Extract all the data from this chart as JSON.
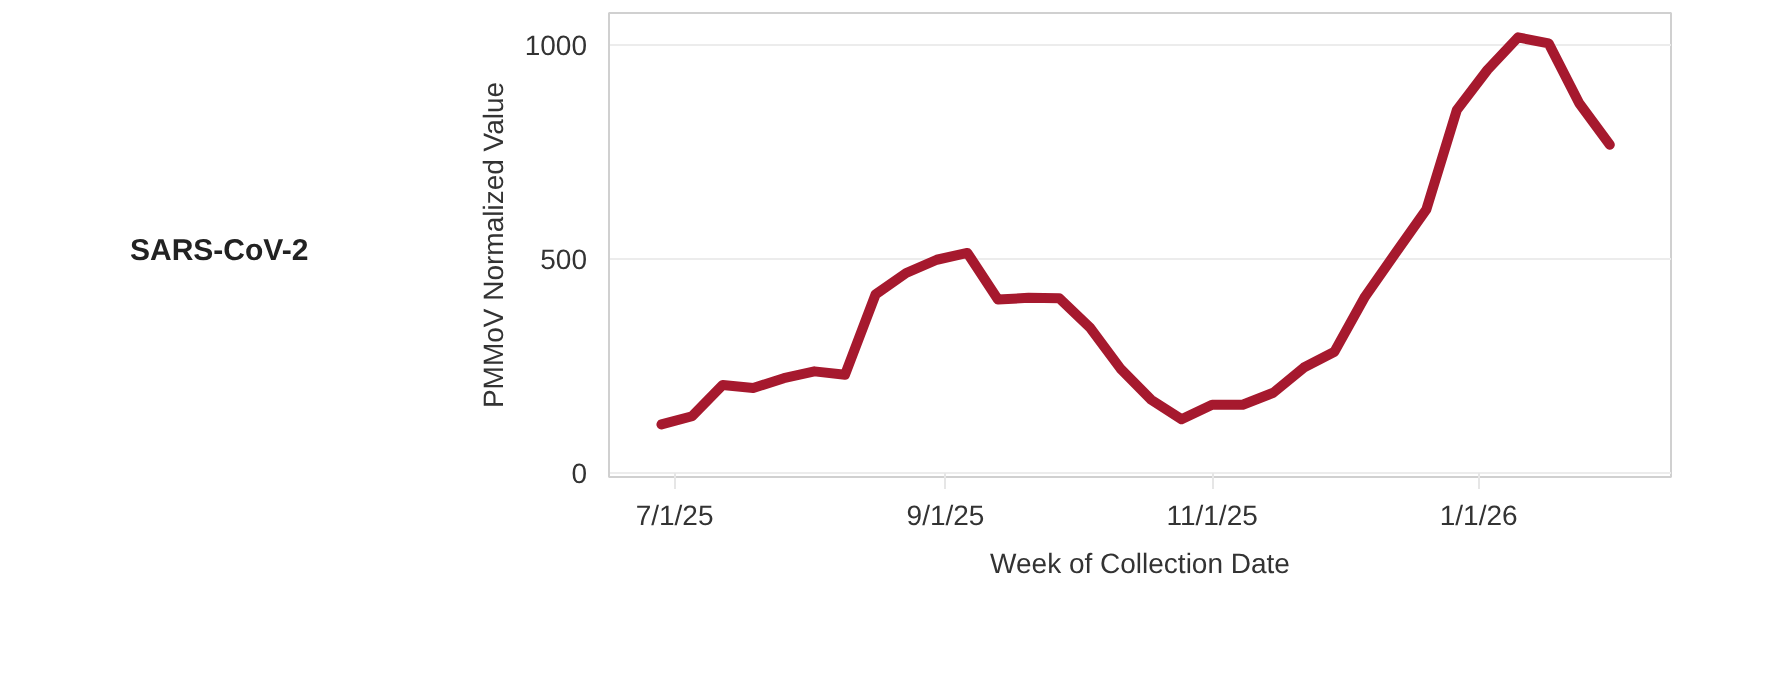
{
  "chart_data": {
    "type": "line",
    "title": "SARS-CoV-2",
    "xlabel": "Week of Collection Date",
    "ylabel": "PMMoV Normalized Value",
    "x": [
      "2025-06-28",
      "2025-07-05",
      "2025-07-12",
      "2025-07-19",
      "2025-07-26",
      "2025-08-02",
      "2025-08-09",
      "2025-08-16",
      "2025-08-23",
      "2025-08-30",
      "2025-09-06",
      "2025-09-13",
      "2025-09-20",
      "2025-09-27",
      "2025-10-04",
      "2025-10-11",
      "2025-10-18",
      "2025-10-25",
      "2025-11-01",
      "2025-11-08",
      "2025-11-15",
      "2025-11-22",
      "2025-11-29",
      "2025-12-06",
      "2025-12-13",
      "2025-12-20",
      "2025-12-27",
      "2026-01-03",
      "2026-01-10",
      "2026-01-17",
      "2026-01-24",
      "2026-01-31"
    ],
    "series": [
      {
        "color": "#a6192e",
        "values": [
          113,
          132,
          205,
          198,
          221,
          237,
          229,
          417,
          467,
          498,
          514,
          405,
          409,
          408,
          340,
          244,
          171,
          125,
          159,
          159,
          187,
          246,
          283,
          412,
          514,
          615,
          848,
          942,
          1018,
          1004,
          864,
          767
        ]
      }
    ],
    "xlim": [
      "2025-06-16",
      "2026-02-14"
    ],
    "xticks": [
      {
        "value": "2025-07-01",
        "label": "7/1/25"
      },
      {
        "value": "2025-09-01",
        "label": "9/1/25"
      },
      {
        "value": "2025-11-01",
        "label": "11/1/25"
      },
      {
        "value": "2026-01-01",
        "label": "1/1/26"
      }
    ],
    "ylim": [
      -10,
      1075
    ],
    "yticks": [
      0,
      500,
      1000
    ],
    "grid": "y",
    "marker": "none",
    "line_style": "solid"
  }
}
